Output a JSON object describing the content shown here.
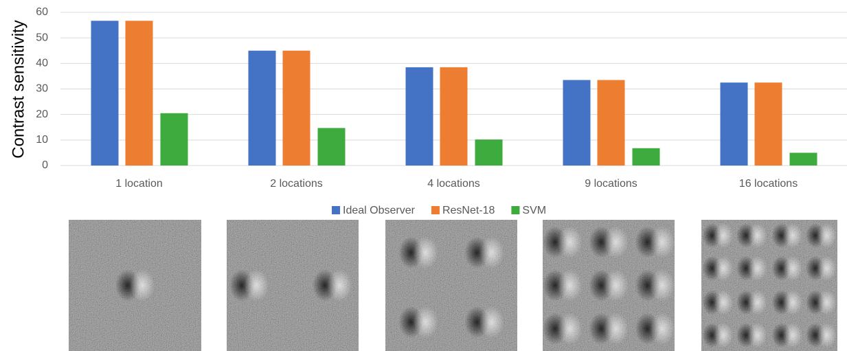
{
  "chart_data": {
    "type": "bar",
    "y_label": "Contrast sensitivity",
    "categories": [
      "1 location",
      "2 locations",
      "4 locations",
      "9 locations",
      "16 locations"
    ],
    "series": [
      {
        "name": "Ideal Observer",
        "color": "#4472c4",
        "values": [
          56.7,
          45,
          38.5,
          33.5,
          32.5
        ]
      },
      {
        "name": "ResNet-18",
        "color": "#ed7d31",
        "values": [
          56.7,
          45,
          38.5,
          33.5,
          32.5
        ]
      },
      {
        "name": "SVM",
        "color": "#3eab3e",
        "values": [
          20.5,
          14.7,
          10.2,
          6.8,
          5.0
        ]
      }
    ],
    "ylim": [
      0,
      60
    ],
    "yticks": [
      0,
      10,
      20,
      30,
      40,
      50,
      60
    ],
    "grid": true,
    "legend": "bottom"
  }
}
